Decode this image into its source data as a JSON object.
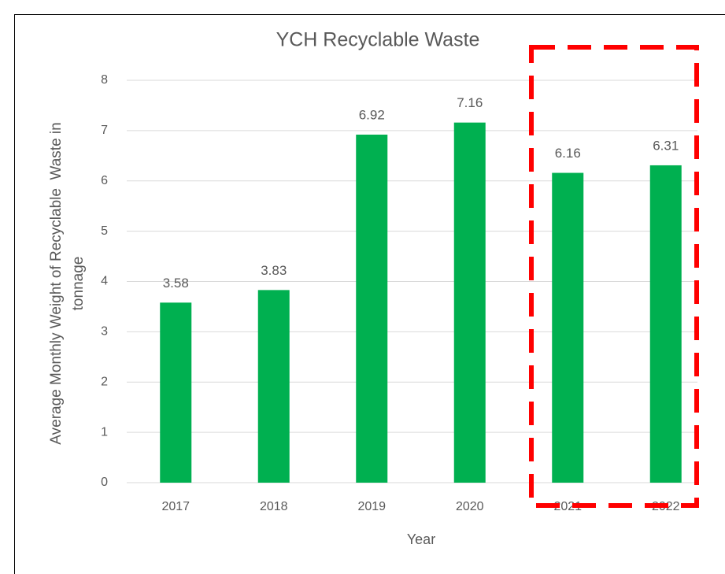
{
  "chart_data": {
    "type": "bar",
    "title": "YCH Recyclable Waste",
    "x_label": "Year",
    "y_label": [
      "Average Monthly Weight of Recyclable  Waste in",
      "tonnage"
    ],
    "categories": [
      "2017",
      "2018",
      "2019",
      "2020",
      "2021",
      "2022"
    ],
    "values": [
      3.58,
      3.83,
      6.92,
      7.16,
      6.16,
      6.31
    ],
    "color": "#00b050",
    "ylim": [
      0,
      8
    ],
    "yticks": [
      0,
      1,
      2,
      3,
      4,
      5,
      6,
      7,
      8
    ],
    "grid": true
  }
}
